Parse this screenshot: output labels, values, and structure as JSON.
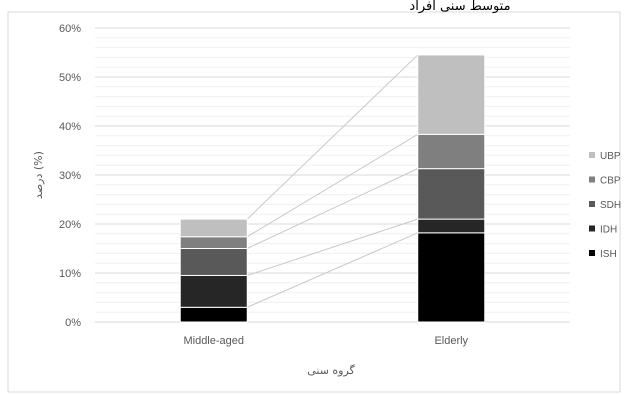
{
  "header_text": "متوسط سنی افراد",
  "chart_data": {
    "type": "bar",
    "stacked": true,
    "categories": [
      "Middle-aged",
      "Elderly"
    ],
    "series": [
      {
        "name": "ISH",
        "values": [
          3.0,
          18.2
        ],
        "color": "#000000"
      },
      {
        "name": "IDH",
        "values": [
          6.5,
          2.8
        ],
        "color": "#262626"
      },
      {
        "name": "SDH",
        "values": [
          5.5,
          10.3
        ],
        "color": "#595959"
      },
      {
        "name": "CBP",
        "values": [
          2.4,
          7.0
        ],
        "color": "#7f7f7f"
      },
      {
        "name": "UBP",
        "values": [
          3.6,
          16.2
        ],
        "color": "#bfbfbf"
      }
    ],
    "ylim": [
      0,
      60
    ],
    "yticks": [
      "0%",
      "10%",
      "20%",
      "30%",
      "40%",
      "50%",
      "60%"
    ],
    "xlabel": "گروه سنی",
    "ylabel": "درصد (%)",
    "grid": true,
    "series_lines": true,
    "legend_position": "right"
  }
}
